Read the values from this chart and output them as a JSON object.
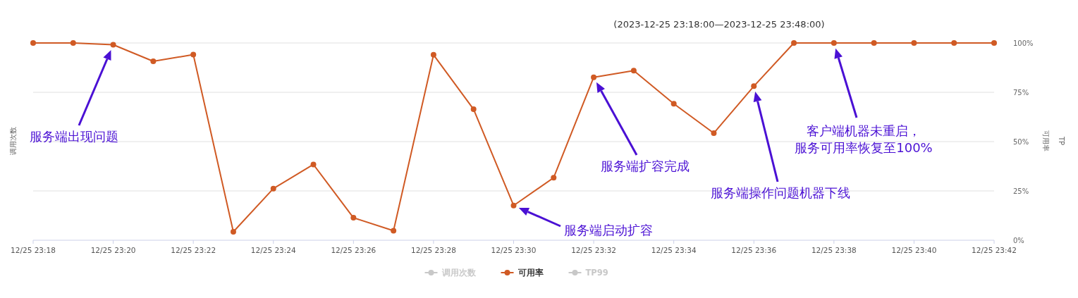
{
  "chart_data": {
    "type": "line",
    "title": "(2023-12-25 23:18:00—2023-12-25 23:48:00)",
    "ylabel": "可用率",
    "y2label": "调用次数",
    "y3label": "TP",
    "x": [
      "2023-12-25T23:18",
      "2023-12-25T23:19",
      "2023-12-25T23:20",
      "2023-12-25T23:21",
      "2023-12-25T23:22",
      "2023-12-25T23:23",
      "2023-12-25T23:24",
      "2023-12-25T23:25",
      "2023-12-25T23:26",
      "2023-12-25T23:27",
      "2023-12-25T23:28",
      "2023-12-25T23:29",
      "2023-12-25T23:30",
      "2023-12-25T23:31",
      "2023-12-25T23:32",
      "2023-12-25T23:33",
      "2023-12-25T23:34",
      "2023-12-25T23:35",
      "2023-12-25T23:36",
      "2023-12-25T23:37",
      "2023-12-25T23:38",
      "2023-12-25T23:39",
      "2023-12-25T23:40",
      "2023-12-25T23:41",
      "2023-12-25T23:42"
    ],
    "series": [
      {
        "name": "调用次数",
        "color": "#c8c8c8",
        "values": [
          null,
          null,
          null,
          null,
          null,
          null,
          null,
          null,
          null,
          null,
          null,
          null,
          null,
          null,
          null,
          null,
          null,
          null,
          null,
          null,
          null,
          null,
          null,
          null,
          null
        ]
      },
      {
        "name": "可用率",
        "color": "#d05a24",
        "values": [
          100,
          100,
          99.1,
          90.7,
          94.1,
          4.3,
          26.2,
          38.4,
          11.4,
          4.8,
          94,
          66.4,
          17.6,
          31.7,
          82.6,
          86,
          69.2,
          54.3,
          78.1,
          100,
          100,
          100,
          100,
          100,
          100
        ]
      },
      {
        "name": "TP99",
        "color": "#c8c8c8",
        "values": [
          null,
          null,
          null,
          null,
          null,
          null,
          null,
          null,
          null,
          null,
          null,
          null,
          null,
          null,
          null,
          null,
          null,
          null,
          null,
          null,
          null,
          null,
          null,
          null,
          null
        ]
      }
    ],
    "xlim": [
      "2023-12-25T23:18",
      "2023-12-25T23:42"
    ],
    "xticks": [
      {
        "value": "2023-12-25T23:18",
        "label": "12/25 23:18"
      },
      {
        "value": "2023-12-25T23:20",
        "label": "12/25 23:20"
      },
      {
        "value": "2023-12-25T23:22",
        "label": "12/25 23:22"
      },
      {
        "value": "2023-12-25T23:24",
        "label": "12/25 23:24"
      },
      {
        "value": "2023-12-25T23:26",
        "label": "12/25 23:26"
      },
      {
        "value": "2023-12-25T23:28",
        "label": "12/25 23:28"
      },
      {
        "value": "2023-12-25T23:30",
        "label": "12/25 23:30"
      },
      {
        "value": "2023-12-25T23:32",
        "label": "12/25 23:32"
      },
      {
        "value": "2023-12-25T23:34",
        "label": "12/25 23:34"
      },
      {
        "value": "2023-12-25T23:36",
        "label": "12/25 23:36"
      },
      {
        "value": "2023-12-25T23:38",
        "label": "12/25 23:38"
      },
      {
        "value": "2023-12-25T23:40",
        "label": "12/25 23:40"
      },
      {
        "value": "2023-12-25T23:42",
        "label": "12/25 23:42"
      }
    ],
    "ylim": [
      0,
      100
    ],
    "yticks": [
      {
        "value": 0,
        "label": "0%"
      },
      {
        "value": 25,
        "label": "25%"
      },
      {
        "value": 50,
        "label": "50%"
      },
      {
        "value": 75,
        "label": "75%"
      },
      {
        "value": 100,
        "label": "100%"
      }
    ],
    "grid": "y",
    "legend": "bottom",
    "marker": "circle",
    "line_style": "solid",
    "annotations": [
      "服务端出现问题",
      "服务端启动扩容",
      "服务端扩容完成",
      "服务端操作问题机器下线",
      "客户端机器未重启，服务可用率恢复至100%"
    ]
  }
}
